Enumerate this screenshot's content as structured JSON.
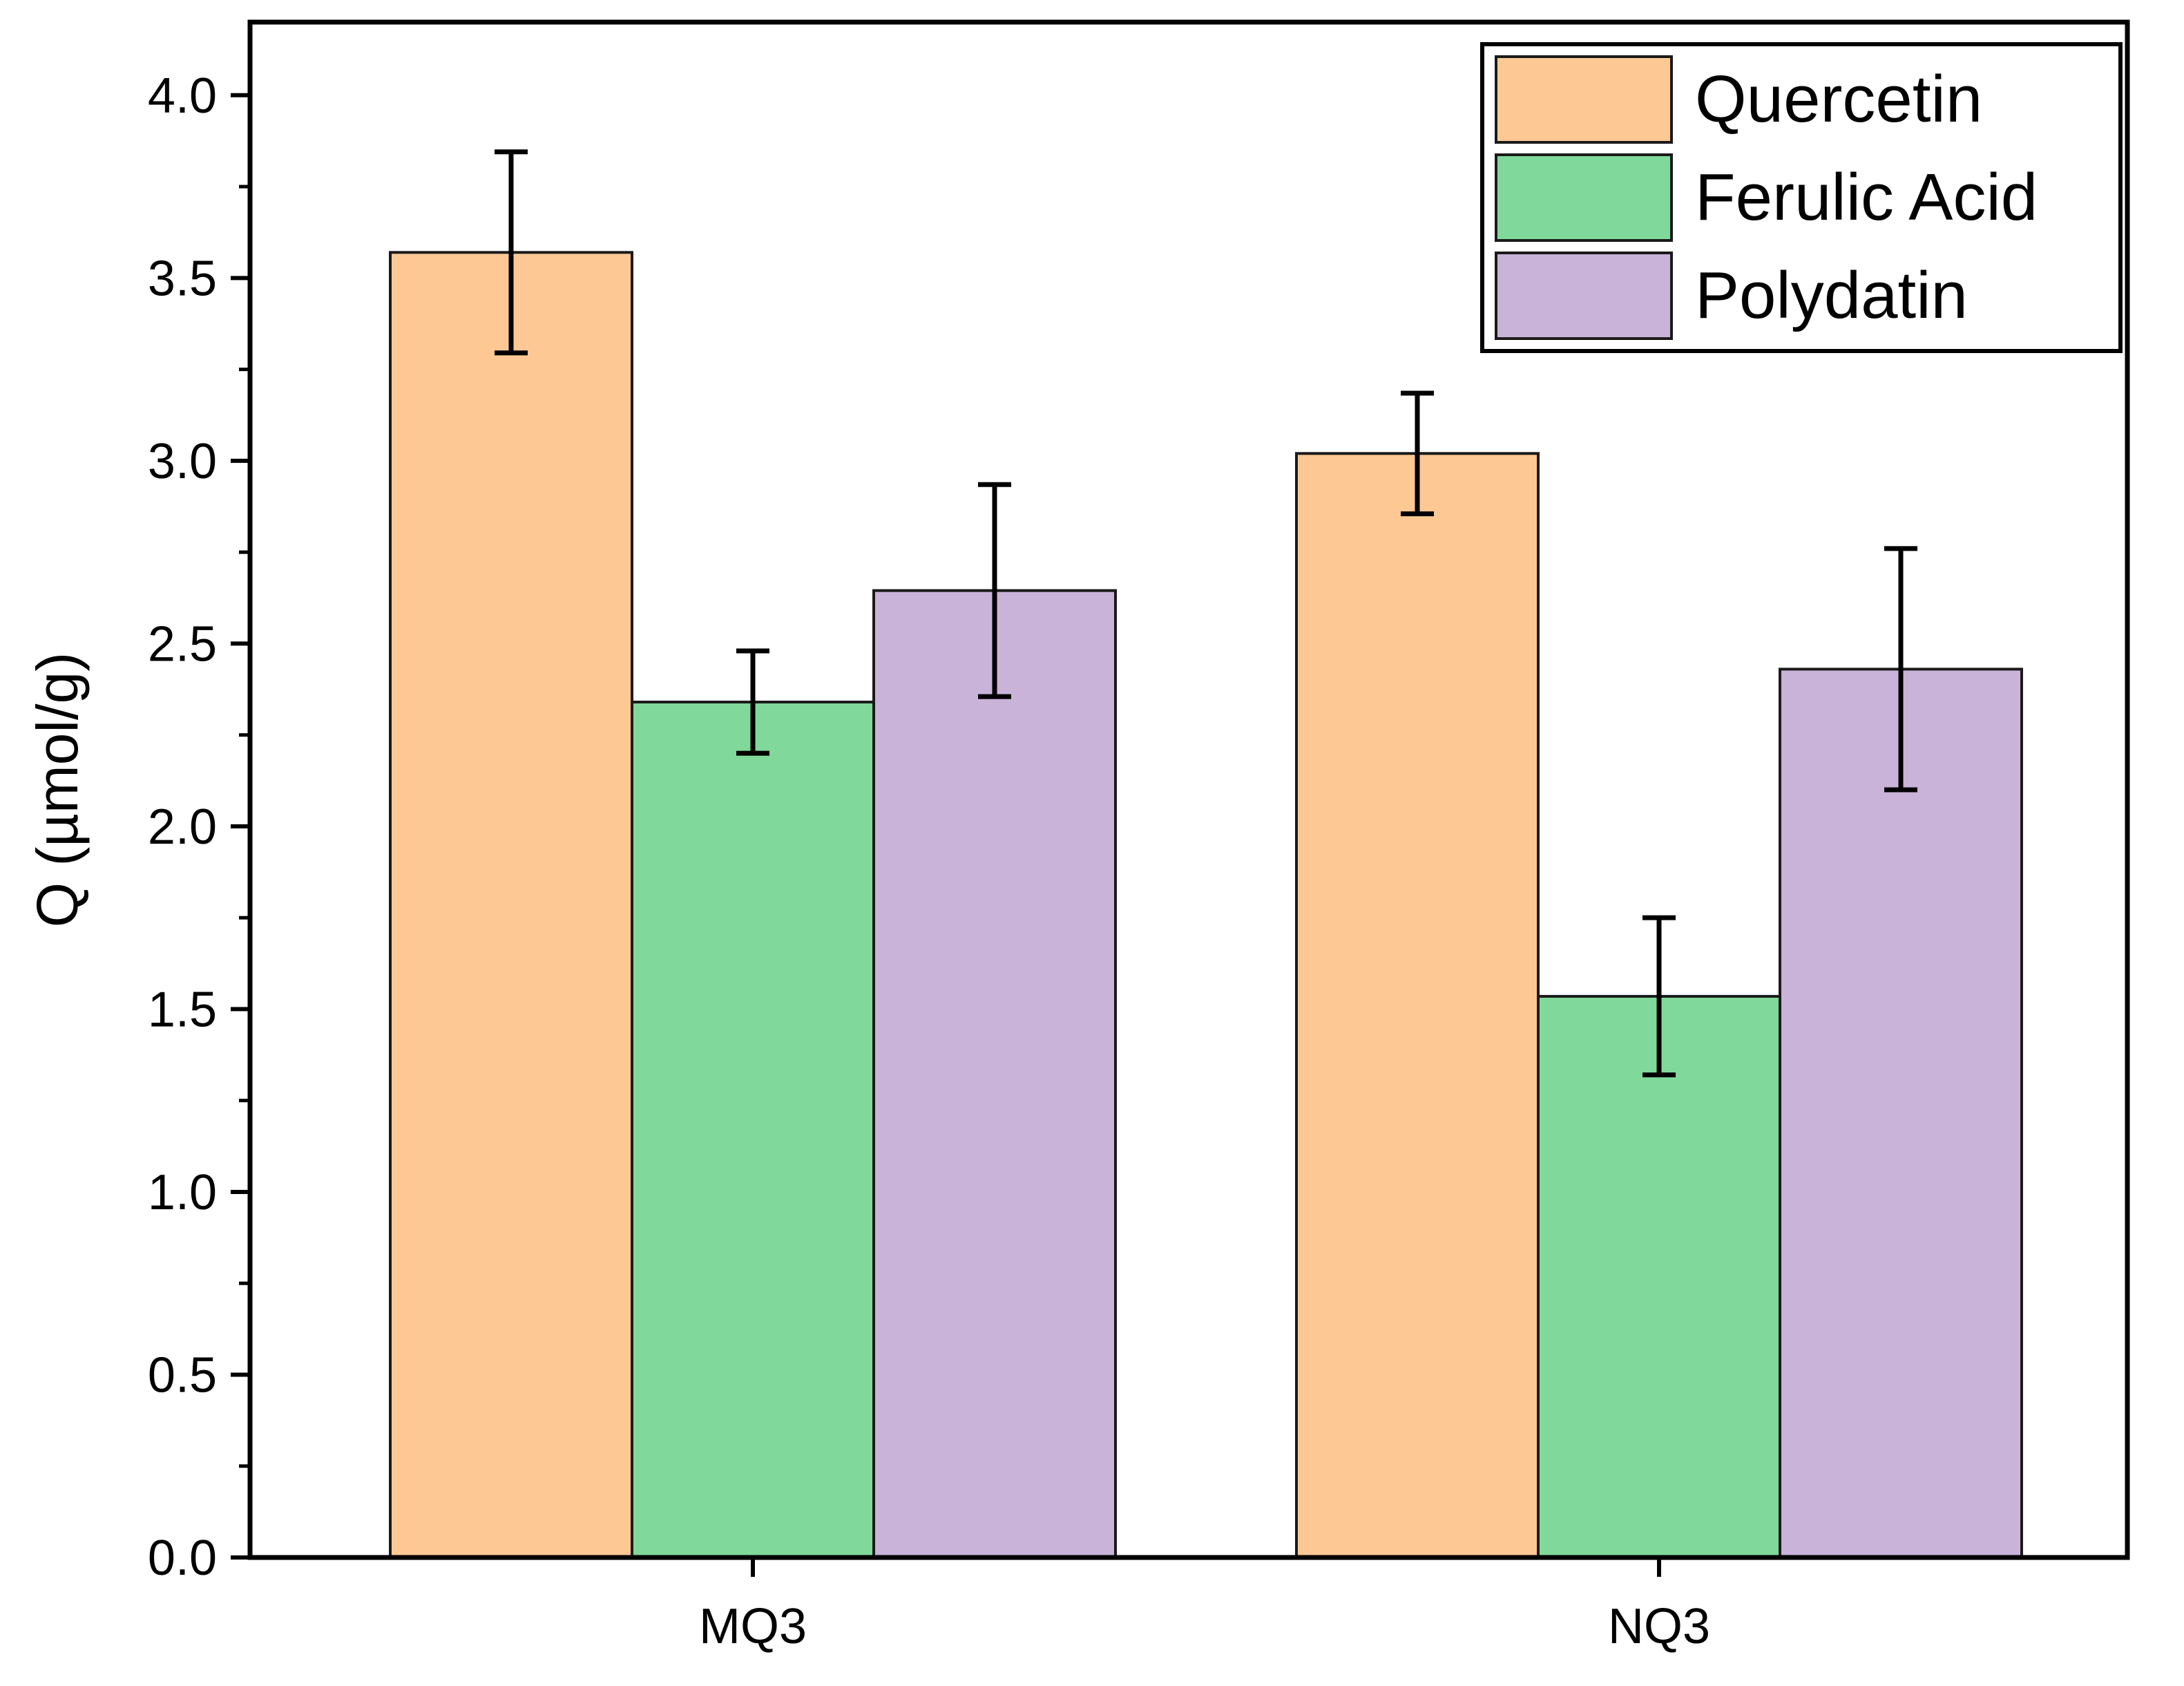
{
  "chart_data": {
    "type": "bar",
    "title": "",
    "xlabel": "",
    "ylabel": "Q (µmol/g)",
    "ylim": [
      0,
      4.2
    ],
    "yticks": [
      "0.0",
      "0.5",
      "1.0",
      "1.5",
      "2.0",
      "2.5",
      "3.0",
      "3.5",
      "4.0"
    ],
    "categories": [
      "MQ3",
      "NQ3"
    ],
    "series": [
      {
        "name": "Quercetin",
        "color": "#FEC895",
        "values": [
          3.57,
          3.02
        ],
        "errors": [
          0.275,
          0.165
        ]
      },
      {
        "name": "Ferulic Acid",
        "color": "#80D99A",
        "values": [
          2.34,
          1.535
        ],
        "errors": [
          0.14,
          0.215
        ]
      },
      {
        "name": "Polydatin",
        "color": "#C9B3D8",
        "values": [
          2.645,
          2.43
        ],
        "errors": [
          0.29,
          0.33
        ]
      }
    ],
    "legend_position": "top-right",
    "grid": false
  }
}
